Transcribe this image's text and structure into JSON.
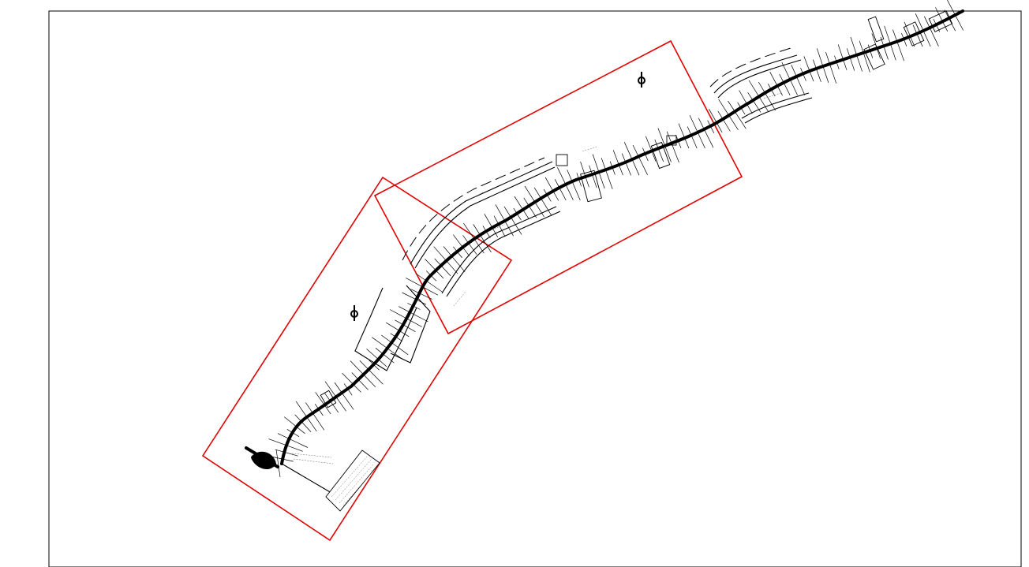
{
  "drawing": {
    "sheet_border": "visible",
    "viewports": [
      {
        "name": "viewport-lower"
      },
      {
        "name": "viewport-upper"
      }
    ],
    "north_arrows": 2,
    "colors": {
      "background": "#ffffff",
      "linework": "#000000",
      "viewport_frame": "#e00000"
    },
    "icons": [
      "north-arrow-icon"
    ]
  }
}
